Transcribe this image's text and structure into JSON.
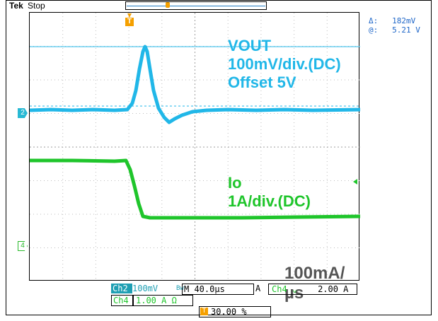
{
  "header": {
    "brand": "Tek",
    "state": "Stop"
  },
  "measurement": {
    "delta_label": "Δ:",
    "delta_value": "182mV",
    "at_label": "@:",
    "at_value": "5.21 V"
  },
  "channels": {
    "ch2_marker": "2",
    "ch4_marker": "4"
  },
  "annotations": {
    "vout_line1": "VOUT",
    "vout_line2": "100mV/div.(DC)",
    "vout_line3": "Offset 5V",
    "io_line1": "Io",
    "io_line2": "1A/div.(DC)",
    "rate": "100mA/µs"
  },
  "statusbar": {
    "ch2_tag": "Ch2",
    "ch2_scale": "100mV",
    "bw": "Bw",
    "timebase": "M 40.0µs",
    "trig_mode": "A",
    "trig_source": "Ch4",
    "trig_slope": "⌄",
    "trig_level": "2.00 A",
    "ch4_tag": "Ch4",
    "ch4_scale": "1.00 A Ω",
    "trigger_position": "30.00 %"
  },
  "colors": {
    "ch2": "#21b7e8",
    "ch4": "#1fc52b",
    "trigger": "#f5a000"
  }
}
